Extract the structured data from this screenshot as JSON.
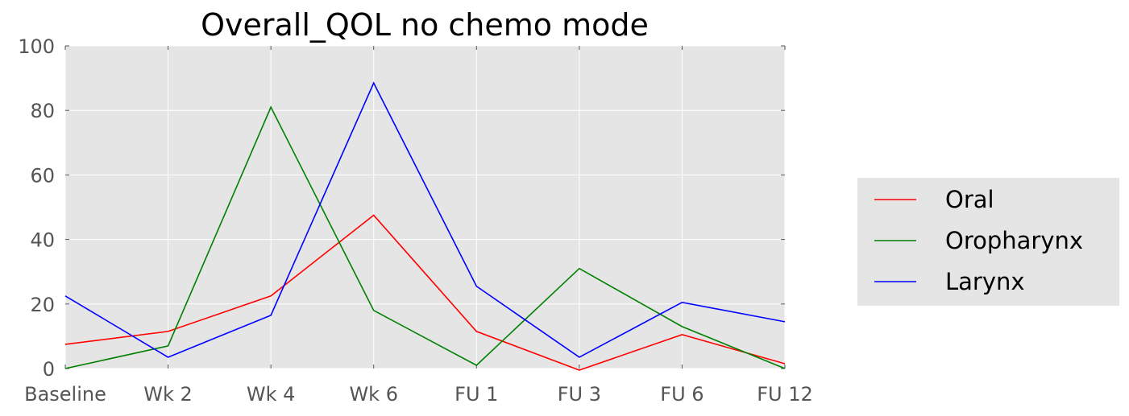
{
  "chart_data": {
    "type": "line",
    "title": "Overall_QOL no chemo  mode",
    "xlabel": "",
    "ylabel": "",
    "categories": [
      "Baseline",
      "Wk 2",
      "Wk 4",
      "Wk 6",
      "FU 1",
      "FU 3",
      "FU 6",
      "FU 12"
    ],
    "ylim": [
      0,
      100
    ],
    "yticks": [
      0,
      20,
      40,
      60,
      80,
      100
    ],
    "grid": true,
    "legend": "right",
    "series": [
      {
        "name": "Oral",
        "color": "#ff0000",
        "values": [
          7.5,
          11.5,
          22.5,
          47.5,
          11.5,
          -0.5,
          10.5,
          1.5
        ]
      },
      {
        "name": "Oropharynx",
        "color": "#008000",
        "values": [
          0,
          7,
          81,
          18,
          1,
          31,
          13,
          0
        ]
      },
      {
        "name": "Larynx",
        "color": "#0000ff",
        "values": [
          22.5,
          3.5,
          16.5,
          88.5,
          25.5,
          3.5,
          20.5,
          14.5
        ]
      }
    ]
  }
}
